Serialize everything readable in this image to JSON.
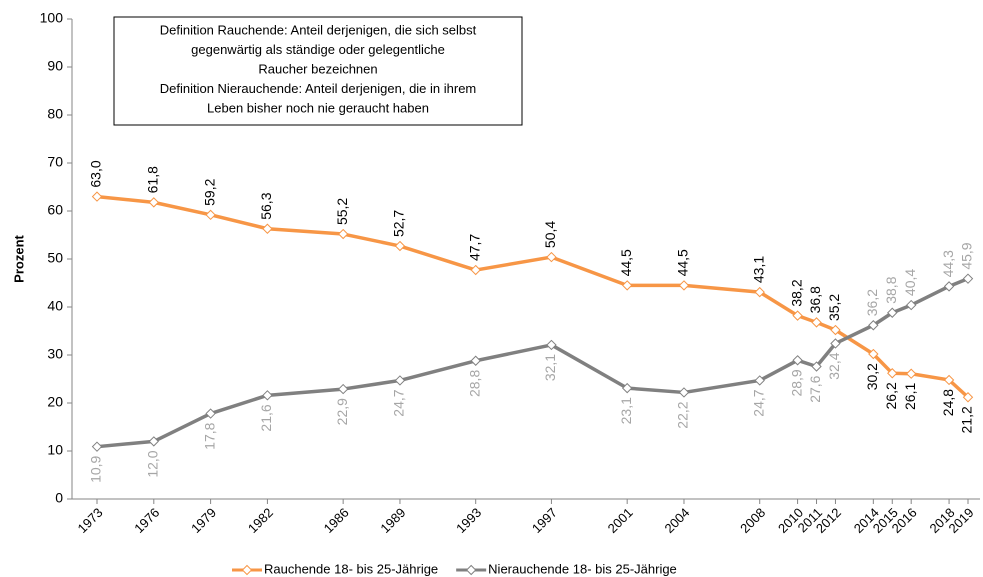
{
  "chart_data": {
    "type": "line",
    "y_label": "Prozent",
    "annotation": [
      "Definition Rauchende: Anteil derjenigen, die sich selbst",
      "gegenwärtig als ständige oder gelegentliche",
      "Raucher bezeichnen",
      "Definition Nierauchende: Anteil derjenigen, die in ihrem",
      "Leben bisher noch nie geraucht haben"
    ],
    "x": [
      1973,
      1976,
      1979,
      1982,
      1986,
      1989,
      1993,
      1997,
      2001,
      2004,
      2008,
      2010,
      2011,
      2012,
      2014,
      2015,
      2016,
      2018,
      2019
    ],
    "xlim": [
      1973,
      2019
    ],
    "xticks": [
      1973,
      1976,
      1979,
      1982,
      1986,
      1989,
      1993,
      1997,
      2001,
      2004,
      2008,
      2010,
      2011,
      2012,
      2014,
      2015,
      2016,
      2018,
      2019
    ],
    "ylim": [
      0,
      100
    ],
    "yticks": [
      0,
      10,
      20,
      30,
      40,
      50,
      60,
      70,
      80,
      90,
      100
    ],
    "grid": false,
    "legend": "bottom",
    "series": [
      {
        "name": "Rauchende 18- bis 25-Jährige",
        "color": "#f79646",
        "label_color": "#000000",
        "values": [
          63.0,
          61.8,
          59.2,
          56.3,
          55.2,
          52.7,
          47.7,
          50.4,
          44.5,
          44.5,
          43.1,
          38.2,
          36.8,
          35.2,
          30.2,
          26.2,
          26.1,
          24.8,
          21.2
        ],
        "value_labels": [
          "63,0",
          "61,8",
          "59,2",
          "56,3",
          "55,2",
          "52,7",
          "47,7",
          "50,4",
          "44,5",
          "44,5",
          "43,1",
          "38,2",
          "36,8",
          "35,2",
          "30,2",
          "26,2",
          "26,1",
          "24,8",
          "21,2"
        ]
      },
      {
        "name": "Nierauchende 18- bis 25-Jährige",
        "color": "#808080",
        "label_color": "#a6a6a6",
        "values": [
          10.9,
          12.0,
          17.8,
          21.6,
          22.9,
          24.7,
          28.8,
          32.1,
          23.1,
          22.2,
          24.7,
          28.9,
          27.6,
          32.4,
          36.2,
          38.8,
          40.4,
          44.3,
          45.9
        ],
        "value_labels": [
          "10,9",
          "12,0",
          "17,8",
          "21,6",
          "22,9",
          "24,7",
          "28,8",
          "32,1",
          "23,1",
          "22,2",
          "24,7",
          "28,9",
          "27,6",
          "32,4",
          "36,2",
          "38,8",
          "40,4",
          "44,3",
          "45,9"
        ]
      }
    ]
  }
}
